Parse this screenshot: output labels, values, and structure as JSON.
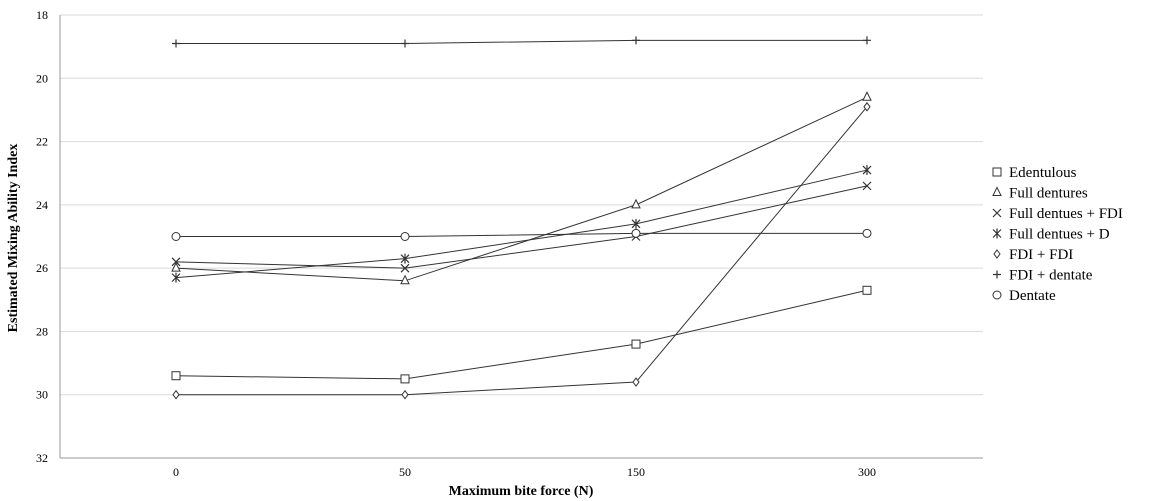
{
  "chart_data": {
    "type": "line",
    "title": "",
    "xlabel": "Maximum bite force (N)",
    "ylabel": "Estimated Mixing Ability Index",
    "categories": [
      "0",
      "50",
      "150",
      "300"
    ],
    "ylim": [
      18,
      32
    ],
    "y_inverted": true,
    "yticks": [
      "18",
      "20",
      "22",
      "24",
      "26",
      "28",
      "30",
      "32"
    ],
    "grid": "horizontal",
    "legend_position": "right",
    "series": [
      {
        "name": "Edentulous",
        "marker": "square",
        "values": [
          29.4,
          29.5,
          28.4,
          26.7
        ]
      },
      {
        "name": "Full dentures",
        "marker": "triangle",
        "values": [
          26.0,
          26.4,
          24.0,
          20.6
        ]
      },
      {
        "name": "Full dentues + FDI",
        "marker": "x",
        "values": [
          25.8,
          26.0,
          25.0,
          23.4
        ]
      },
      {
        "name": "Full dentues + D",
        "marker": "star",
        "values": [
          26.3,
          25.7,
          24.6,
          22.9
        ]
      },
      {
        "name": "FDI + FDI",
        "marker": "diamond",
        "values": [
          30.0,
          30.0,
          29.6,
          20.9
        ]
      },
      {
        "name": "FDI + dentate",
        "marker": "plus",
        "values": [
          18.9,
          18.9,
          18.8,
          18.8
        ]
      },
      {
        "name": "Dentate",
        "marker": "circle",
        "values": [
          25.0,
          25.0,
          24.9,
          24.9
        ]
      }
    ]
  }
}
